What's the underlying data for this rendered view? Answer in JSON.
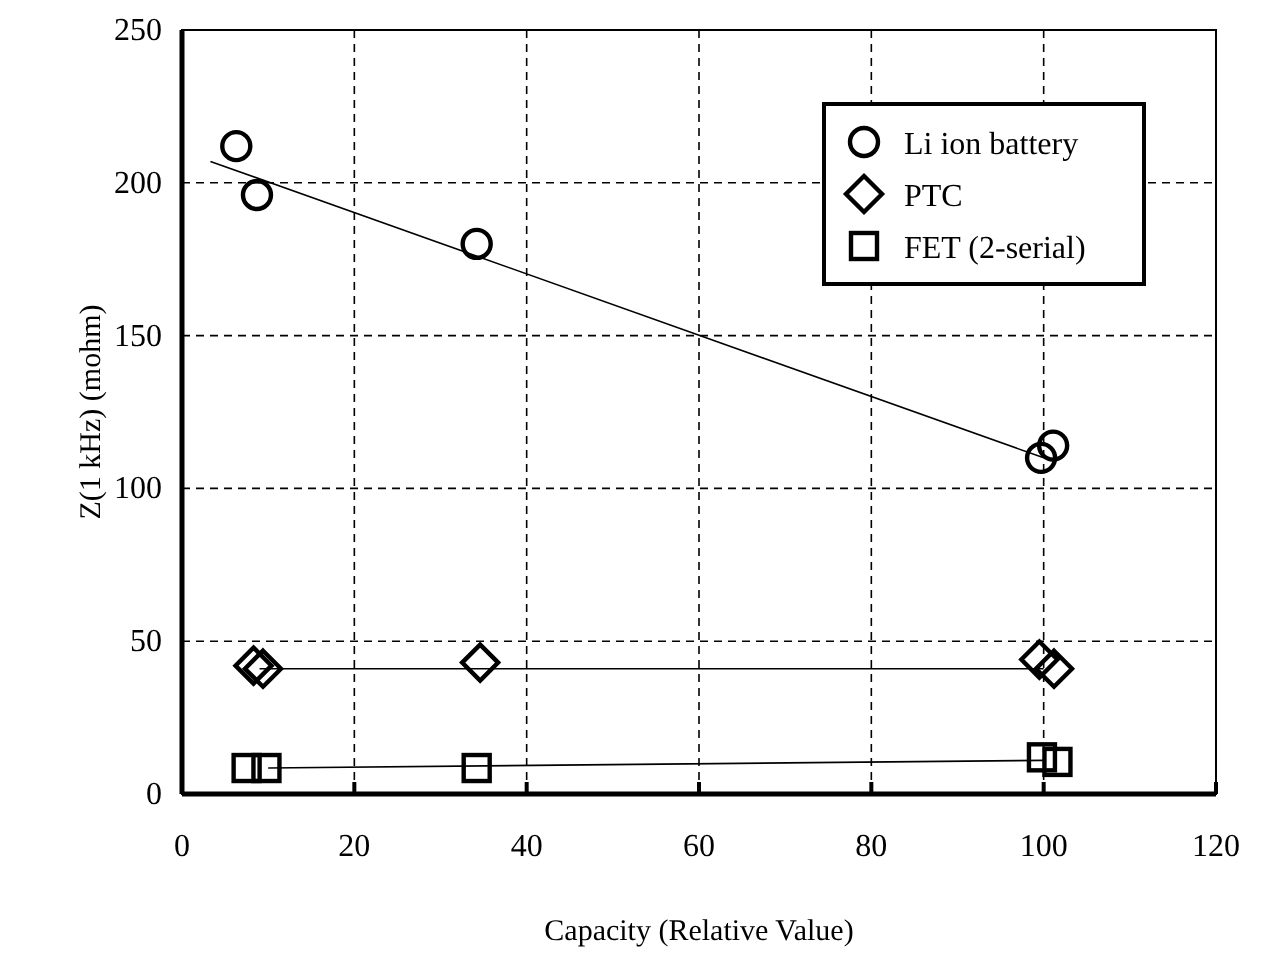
{
  "chart_data": {
    "type": "scatter",
    "xlabel": "Capacity (Relative Value)",
    "ylabel": "Z(1 kHz) (mohm)",
    "xlim": [
      0,
      120
    ],
    "xticks": [
      0,
      20,
      40,
      60,
      80,
      100,
      120
    ],
    "ylim": [
      0,
      250
    ],
    "yticks": [
      0,
      50,
      100,
      150,
      200,
      250
    ],
    "grid": true,
    "legend": "top right",
    "series": [
      {
        "name": "Li ion battery",
        "marker": "circle",
        "color": "#000000",
        "x": [
          6.3,
          8.7,
          34.2,
          99.7,
          101.1
        ],
        "values": [
          212,
          196,
          180,
          110,
          114
        ]
      },
      {
        "name": "PTC",
        "marker": "diamond",
        "color": "#000000",
        "x": [
          8.3,
          9.4,
          34.6,
          99.5,
          101.2
        ],
        "values": [
          42,
          41,
          43,
          44,
          41
        ]
      },
      {
        "name": "FET (2-serial)",
        "marker": "square",
        "color": "#000000",
        "x": [
          7.5,
          9.8,
          34.2,
          99.8,
          101.6
        ],
        "values": [
          8.5,
          8.5,
          8.5,
          12,
          10.5
        ]
      },
      {
        "type": "line",
        "color": "#000000",
        "x": [
          3.3,
          100
        ],
        "values": [
          207,
          110
        ]
      },
      {
        "type": "line",
        "color": "#000000",
        "x": [
          9,
          100
        ],
        "values": [
          41,
          41
        ]
      },
      {
        "type": "line",
        "color": "#000000",
        "x": [
          10,
          100
        ],
        "values": [
          8.5,
          11
        ]
      }
    ]
  }
}
